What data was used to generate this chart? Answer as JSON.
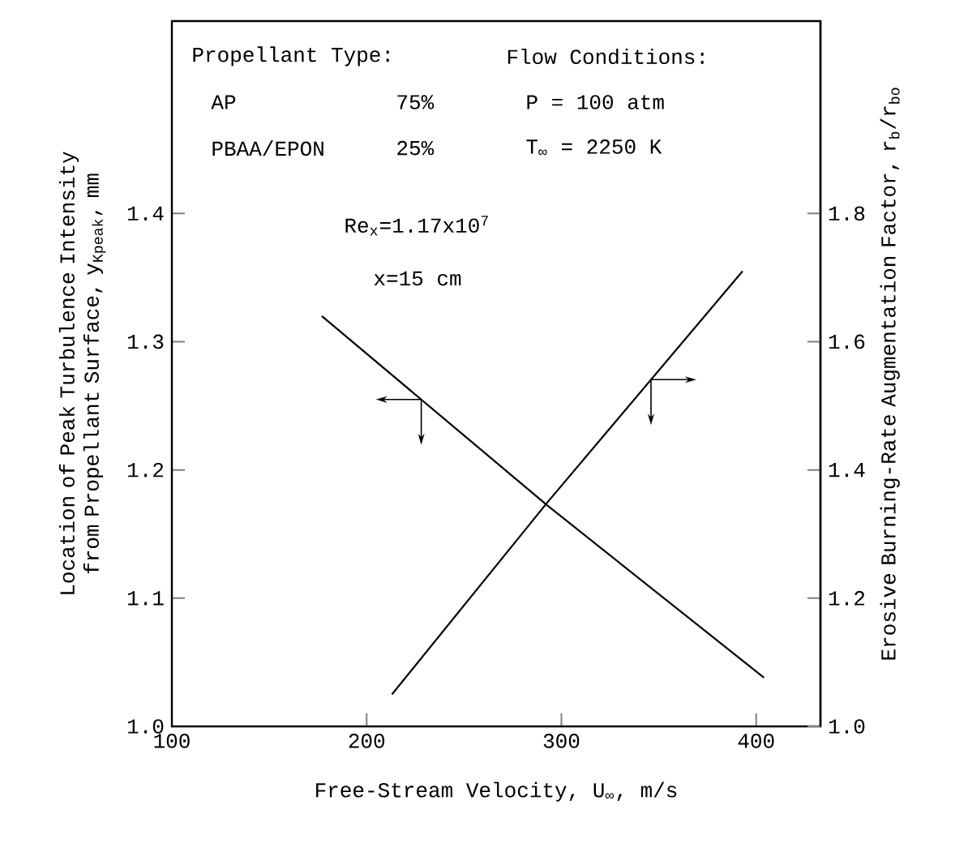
{
  "chart_data": {
    "type": "line",
    "xlabel": "Free-Stream Velocity, U$_{∞}$, m/s",
    "ylabel": "Location of Peak Turbulence Intensity from Propellant Surface, y$_{Kpeak}$, mm",
    "y2label": "Erosive Burning-Rate Augmentation Factor, r$_{b}$/r$_{bo}$",
    "xlim": [
      100,
      433
    ],
    "ylim": [
      1.0,
      1.55
    ],
    "y2lim": [
      1.0,
      2.1
    ],
    "xticks": [
      100,
      200,
      300,
      400
    ],
    "yticks": [
      {
        "value": 1.0,
        "label": "1.0"
      },
      1.1,
      1.2,
      1.3,
      1.4
    ],
    "y2ticks": [
      {
        "value": 1.0,
        "label": "1.0"
      },
      1.2,
      1.4,
      1.6,
      1.8
    ],
    "annotations": [
      "Propellant Type:",
      "AP",
      "75%",
      "PBAA/EPON",
      "25%",
      "Flow Conditions:",
      "P = 100 atm",
      "T$_{∞}$ = 2250 K",
      "Re$_{x}$=1.17x10$^{7}$",
      "x=15 cm"
    ],
    "series": [
      {
        "color": "#000000",
        "x": [
          177,
          293,
          404
        ],
        "values": [
          1.32,
          1.172,
          1.038
        ]
      },
      {
        "color": "#000000",
        "axis": "y2",
        "x": [
          213,
          293,
          393
        ],
        "values": [
          1.05,
          1.35,
          1.71
        ]
      }
    ]
  }
}
